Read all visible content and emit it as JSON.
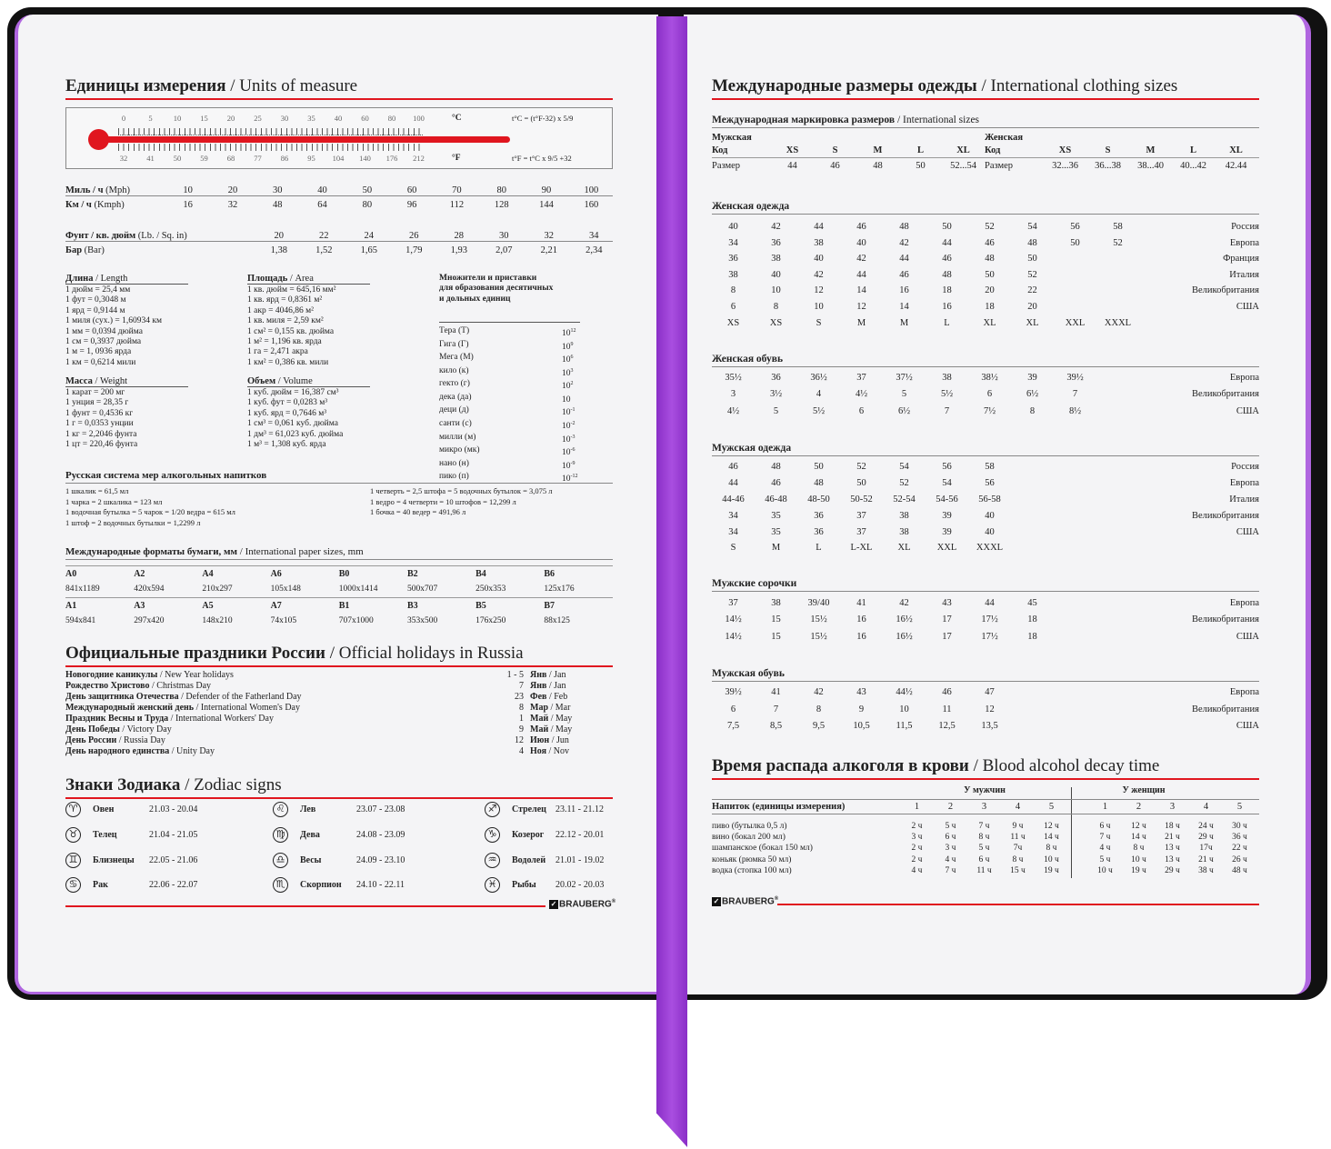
{
  "colors": {
    "accent": "#e0161f",
    "ribbon": "#a94ee0",
    "cover": "#111111"
  },
  "units": {
    "title_ru": "Единицы измерения",
    "title_en": "/ Units of measure",
    "celsius": [
      "0",
      "5",
      "10",
      "15",
      "20",
      "25",
      "30",
      "35",
      "40",
      "60",
      "80",
      "100"
    ],
    "c_unit": "°C",
    "fahrenheit": [
      "32",
      "41",
      "50",
      "59",
      "68",
      "77",
      "86",
      "95",
      "104",
      "140",
      "176",
      "212"
    ],
    "f_unit": "°F",
    "formula_c": "t°C = (t°F-32) x 5/9",
    "formula_f": "t°F = t°C x 9/5 +32"
  },
  "speed": [
    {
      "ru": "Миль / ч",
      "en": "(Mph)",
      "values": [
        "10",
        "20",
        "30",
        "40",
        "50",
        "60",
        "70",
        "80",
        "90",
        "100"
      ]
    },
    {
      "ru": "Км / ч",
      "en": "(Kmph)",
      "values": [
        "16",
        "32",
        "48",
        "64",
        "80",
        "96",
        "112",
        "128",
        "144",
        "160"
      ]
    }
  ],
  "pressure": [
    {
      "ru": "Фунт / кв. дюйм",
      "en": "(Lb. / Sq. in)",
      "values": [
        "20",
        "22",
        "24",
        "26",
        "28",
        "30",
        "32",
        "34"
      ]
    },
    {
      "ru": "Бар",
      "en": "(Bar)",
      "values": [
        "1,38",
        "1,52",
        "1,65",
        "1,79",
        "1,93",
        "2,07",
        "2,21",
        "2,34"
      ]
    }
  ],
  "length": {
    "ru": "Длина",
    "en": "/ Length",
    "items": [
      "1 дюйм = 25,4 мм",
      "1 фут = 0,3048 м",
      "1 ярд = 0,9144 м",
      "1 миля (сух.) = 1,60934 км",
      "1 мм = 0,0394 дюйма",
      "1 см = 0,3937 дюйма",
      "1 м = 1, 0936 ярда",
      "1 км = 0,6214 мили"
    ]
  },
  "area": {
    "ru": "Площадь",
    "en": "/ Area",
    "items": [
      "1 кв. дюйм = 645,16 мм²",
      "1 кв. ярд = 0,8361 м²",
      "1 акр = 4046,86 м²",
      "1 кв. миля = 2,59 км²",
      "1 см² = 0,155 кв. дюйма",
      "1 м² = 1,196 кв. ярда",
      "1 га = 2,471 акра",
      "1 км² = 0,386 кв. мили"
    ]
  },
  "weight": {
    "ru": "Масса",
    "en": "/ Weight",
    "items": [
      "1 карат = 200 мг",
      "1 унция = 28,35 г",
      "1 фунт = 0,4536 кг",
      "1 г = 0,0353 унции",
      "1 кг = 2,2046 фунта",
      "1 цт = 220,46 фунта"
    ]
  },
  "volume": {
    "ru": "Объем",
    "en": "/ Volume",
    "items": [
      "1 куб. дюйм = 16,387 см³",
      "1 куб. фут = 0,0283 м³",
      "1 куб. ярд = 0,7646 м³",
      "1 см³ = 0,061 куб. дюйма",
      "1 дм³ = 61,023 куб. дюйма",
      "1 м³ = 1,308 куб. ярда"
    ]
  },
  "prefixes": {
    "title": [
      "Множители и приставки",
      "для образования десятичных",
      "и дольных единиц"
    ],
    "items": [
      {
        "name": "Тера (Т)",
        "base": "10",
        "exp": "12"
      },
      {
        "name": "Гига (Г)",
        "base": "10",
        "exp": "9"
      },
      {
        "name": "Мега (М)",
        "base": "10",
        "exp": "6"
      },
      {
        "name": "кило (к)",
        "base": "10",
        "exp": "3"
      },
      {
        "name": "гекто (г)",
        "base": "10",
        "exp": "2"
      },
      {
        "name": "дека (да)",
        "base": "10",
        "exp": ""
      },
      {
        "name": "деци (д)",
        "base": "10",
        "exp": "-1"
      },
      {
        "name": "санти (с)",
        "base": "10",
        "exp": "-2"
      },
      {
        "name": "милли (м)",
        "base": "10",
        "exp": "-3"
      },
      {
        "name": "микро (мк)",
        "base": "10",
        "exp": "-6"
      },
      {
        "name": "нано (н)",
        "base": "10",
        "exp": "-9"
      },
      {
        "name": "пико (п)",
        "base": "10",
        "exp": "-12"
      }
    ]
  },
  "alcohol_measures": {
    "title": "Русская система мер алкогольных напитков",
    "left": [
      "1 шкалик = 61,5 мл",
      "1 чарка = 2 шкалика = 123 мл",
      "1 водочная бутылка = 5 чарок = 1/20 ведра = 615 мл",
      "1 штоф = 2 водочных бутылки = 1,2299 л"
    ],
    "right": [
      "1 четверть = 2,5 штофа = 5 водочных бутылок = 3,075 л",
      "1 ведро = 4 четверти = 10 штофов = 12,299 л",
      "1 бочка = 40 ведер = 491,96 л"
    ]
  },
  "paper": {
    "title_ru": "Международные форматы бумаги, мм",
    "title_en": "/ International paper sizes, mm",
    "rows": [
      [
        "A0",
        "A2",
        "A4",
        "A6",
        "B0",
        "B2",
        "B4",
        "B6"
      ],
      [
        "841x1189",
        "420x594",
        "210x297",
        "105x148",
        "1000x1414",
        "500x707",
        "250x353",
        "125x176"
      ],
      [
        "A1",
        "A3",
        "A5",
        "A7",
        "B1",
        "B3",
        "B5",
        "B7"
      ],
      [
        "594x841",
        "297x420",
        "148x210",
        "74x105",
        "707x1000",
        "353x500",
        "176x250",
        "88x125"
      ]
    ]
  },
  "holidays": {
    "title_ru": "Официальные праздники России",
    "title_en": "/ Official holidays in Russia",
    "items": [
      {
        "ru": "Новогодние каникулы",
        "en": "/ New Year holidays",
        "day": "1 - 5",
        "m_ru": "Янв",
        "m_en": "/ Jan"
      },
      {
        "ru": "Рождество Христово",
        "en": "/ Christmas Day",
        "day": "7",
        "m_ru": "Янв",
        "m_en": "/ Jan"
      },
      {
        "ru": "День защитника Отечества",
        "en": "/ Defender of the Fatherland Day",
        "day": "23",
        "m_ru": "Фев",
        "m_en": "/ Feb"
      },
      {
        "ru": "Международный женский день",
        "en": "/ International Women's Day",
        "day": "8",
        "m_ru": "Мар",
        "m_en": "/ Mar"
      },
      {
        "ru": "Праздник Весны и Труда",
        "en": "/ International Workers' Day",
        "day": "1",
        "m_ru": "Май",
        "m_en": "/ May"
      },
      {
        "ru": "День Победы",
        "en": "/ Victory Day",
        "day": "9",
        "m_ru": "Май",
        "m_en": "/ May"
      },
      {
        "ru": "День России",
        "en": "/ Russia Day",
        "day": "12",
        "m_ru": "Июн",
        "m_en": "/ Jun"
      },
      {
        "ru": "День народного единства",
        "en": "/ Unity Day",
        "day": "4",
        "m_ru": "Ноя",
        "m_en": "/ Nov"
      }
    ]
  },
  "zodiac": {
    "title_ru": "Знаки Зодиака",
    "title_en": "/ Zodiac signs",
    "items": [
      {
        "name": "Овен",
        "dates": "21.03 - 20.04",
        "icon": "aries-icon",
        "glyph": "♈"
      },
      {
        "name": "Телец",
        "dates": "21.04 - 21.05",
        "icon": "taurus-icon",
        "glyph": "♉"
      },
      {
        "name": "Близнецы",
        "dates": "22.05 - 21.06",
        "icon": "gemini-icon",
        "glyph": "♊"
      },
      {
        "name": "Рак",
        "dates": "22.06 - 22.07",
        "icon": "cancer-icon",
        "glyph": "♋"
      },
      {
        "name": "Лев",
        "dates": "23.07 - 23.08",
        "icon": "leo-icon",
        "glyph": "♌"
      },
      {
        "name": "Дева",
        "dates": "24.08 - 23.09",
        "icon": "virgo-icon",
        "glyph": "♍"
      },
      {
        "name": "Весы",
        "dates": "24.09 - 23.10",
        "icon": "libra-icon",
        "glyph": "♎"
      },
      {
        "name": "Скорпион",
        "dates": "24.10 - 22.11",
        "icon": "scorpio-icon",
        "glyph": "♏"
      },
      {
        "name": "Стрелец",
        "dates": "23.11 - 21.12",
        "icon": "sagittarius-icon",
        "glyph": "♐"
      },
      {
        "name": "Козерог",
        "dates": "22.12 - 20.01",
        "icon": "capricorn-icon",
        "glyph": "♑"
      },
      {
        "name": "Водолей",
        "dates": "21.01 - 19.02",
        "icon": "aquarius-icon",
        "glyph": "♒"
      },
      {
        "name": "Рыбы",
        "dates": "20.02 - 20.03",
        "icon": "pisces-icon",
        "glyph": "♓"
      }
    ]
  },
  "brand": "BRAUBERG",
  "clothing": {
    "title_ru": "Международные размеры одежды",
    "title_en": "/ International clothing sizes",
    "intl_ru": "Международная маркировка размеров",
    "intl_en": "/ International sizes",
    "men": {
      "label": "Мужская",
      "code": "Код",
      "codes": [
        "XS",
        "S",
        "M",
        "L",
        "XL"
      ],
      "size": "Размер",
      "sizes": [
        "44",
        "46",
        "48",
        "50",
        "52...54"
      ]
    },
    "women": {
      "label": "Женская",
      "code": "Код",
      "codes": [
        "XS",
        "S",
        "M",
        "L",
        "XL"
      ],
      "size": "Размер",
      "sizes": [
        "32...36",
        "36...38",
        "38...40",
        "40...42",
        "42.44"
      ]
    }
  },
  "size_tables": [
    {
      "title": "Женская одежда",
      "rows": [
        {
          "v": [
            "40",
            "42",
            "44",
            "46",
            "48",
            "50",
            "52",
            "54",
            "56",
            "58"
          ],
          "c": "Россия"
        },
        {
          "v": [
            "34",
            "36",
            "38",
            "40",
            "42",
            "44",
            "46",
            "48",
            "50",
            "52"
          ],
          "c": "Европа"
        },
        {
          "v": [
            "36",
            "38",
            "40",
            "42",
            "44",
            "46",
            "48",
            "50"
          ],
          "c": "Франция"
        },
        {
          "v": [
            "38",
            "40",
            "42",
            "44",
            "46",
            "48",
            "50",
            "52"
          ],
          "c": "Италия"
        },
        {
          "v": [
            "8",
            "10",
            "12",
            "14",
            "16",
            "18",
            "20",
            "22"
          ],
          "c": "Великобритания"
        },
        {
          "v": [
            "6",
            "8",
            "10",
            "12",
            "14",
            "16",
            "18",
            "20"
          ],
          "c": "США"
        },
        {
          "v": [
            "XS",
            "XS",
            "S",
            "M",
            "M",
            "L",
            "XL",
            "XL",
            "XXL",
            "XXXL"
          ],
          "c": ""
        }
      ]
    },
    {
      "title": "Женская обувь",
      "rows": [
        {
          "v": [
            "35½",
            "36",
            "36½",
            "37",
            "37½",
            "38",
            "38½",
            "39",
            "39½"
          ],
          "c": "Европа"
        },
        {
          "v": [
            "3",
            "3½",
            "4",
            "4½",
            "5",
            "5½",
            "6",
            "6½",
            "7"
          ],
          "c": "Великобритания"
        },
        {
          "v": [
            "4½",
            "5",
            "5½",
            "6",
            "6½",
            "7",
            "7½",
            "8",
            "8½"
          ],
          "c": "США"
        }
      ]
    },
    {
      "title": "Мужская одежда",
      "rows": [
        {
          "v": [
            "46",
            "48",
            "50",
            "52",
            "54",
            "56",
            "58"
          ],
          "c": "Россия"
        },
        {
          "v": [
            "44",
            "46",
            "48",
            "50",
            "52",
            "54",
            "56"
          ],
          "c": "Европа"
        },
        {
          "v": [
            "44-46",
            "46-48",
            "48-50",
            "50-52",
            "52-54",
            "54-56",
            "56-58"
          ],
          "c": "Италия"
        },
        {
          "v": [
            "34",
            "35",
            "36",
            "37",
            "38",
            "39",
            "40"
          ],
          "c": "Великобритания"
        },
        {
          "v": [
            "34",
            "35",
            "36",
            "37",
            "38",
            "39",
            "40"
          ],
          "c": "США"
        },
        {
          "v": [
            "S",
            "M",
            "L",
            "L-XL",
            "XL",
            "XXL",
            "XXXL"
          ],
          "c": ""
        }
      ]
    },
    {
      "title": "Мужские сорочки",
      "rows": [
        {
          "v": [
            "37",
            "38",
            "39/40",
            "41",
            "42",
            "43",
            "44",
            "45"
          ],
          "c": "Европа"
        },
        {
          "v": [
            "14½",
            "15",
            "15½",
            "16",
            "16½",
            "17",
            "17½",
            "18"
          ],
          "c": "Великобритания"
        },
        {
          "v": [
            "14½",
            "15",
            "15½",
            "16",
            "16½",
            "17",
            "17½",
            "18"
          ],
          "c": "США"
        }
      ]
    },
    {
      "title": "Мужская обувь",
      "rows": [
        {
          "v": [
            "39½",
            "41",
            "42",
            "43",
            "44½",
            "46",
            "47"
          ],
          "c": "Европа"
        },
        {
          "v": [
            "6",
            "7",
            "8",
            "9",
            "10",
            "11",
            "12"
          ],
          "c": "Великобритания"
        },
        {
          "v": [
            "7,5",
            "8,5",
            "9,5",
            "10,5",
            "11,5",
            "12,5",
            "13,5"
          ],
          "c": "США"
        }
      ]
    }
  ],
  "decay": {
    "title_ru": "Время распада алкоголя в крови",
    "title_en": "/ Blood alcohol decay time",
    "men": "У мужчин",
    "women": "У женщин",
    "header": "Напиток (единицы измерения)",
    "cols": [
      "1",
      "2",
      "3",
      "4",
      "5"
    ],
    "rows": [
      {
        "drink": "пиво (бутылка 0,5 л)",
        "men": [
          "2 ч",
          "5 ч",
          "7 ч",
          "9 ч",
          "12 ч"
        ],
        "women": [
          "6 ч",
          "12 ч",
          "18 ч",
          "24 ч",
          "30 ч"
        ]
      },
      {
        "drink": "вино (бокал 200 мл)",
        "men": [
          "3 ч",
          "6 ч",
          "8 ч",
          "11 ч",
          "14 ч"
        ],
        "women": [
          "7 ч",
          "14 ч",
          "21 ч",
          "29 ч",
          "36 ч"
        ]
      },
      {
        "drink": "шампанское (бокал 150 мл)",
        "men": [
          "2 ч",
          "3 ч",
          "5 ч",
          "7ч",
          "8 ч"
        ],
        "women": [
          "4 ч",
          "8 ч",
          "13 ч",
          "17ч",
          "22 ч"
        ]
      },
      {
        "drink": "коньяк (рюмка 50 мл)",
        "men": [
          "2 ч",
          "4 ч",
          "6 ч",
          "8 ч",
          "10 ч"
        ],
        "women": [
          "5 ч",
          "10 ч",
          "13 ч",
          "21 ч",
          "26 ч"
        ]
      },
      {
        "drink": "водка (стопка 100 мл)",
        "men": [
          "4 ч",
          "7 ч",
          "11 ч",
          "15 ч",
          "19 ч"
        ],
        "women": [
          "10 ч",
          "19 ч",
          "29 ч",
          "38 ч",
          "48 ч"
        ]
      }
    ]
  }
}
